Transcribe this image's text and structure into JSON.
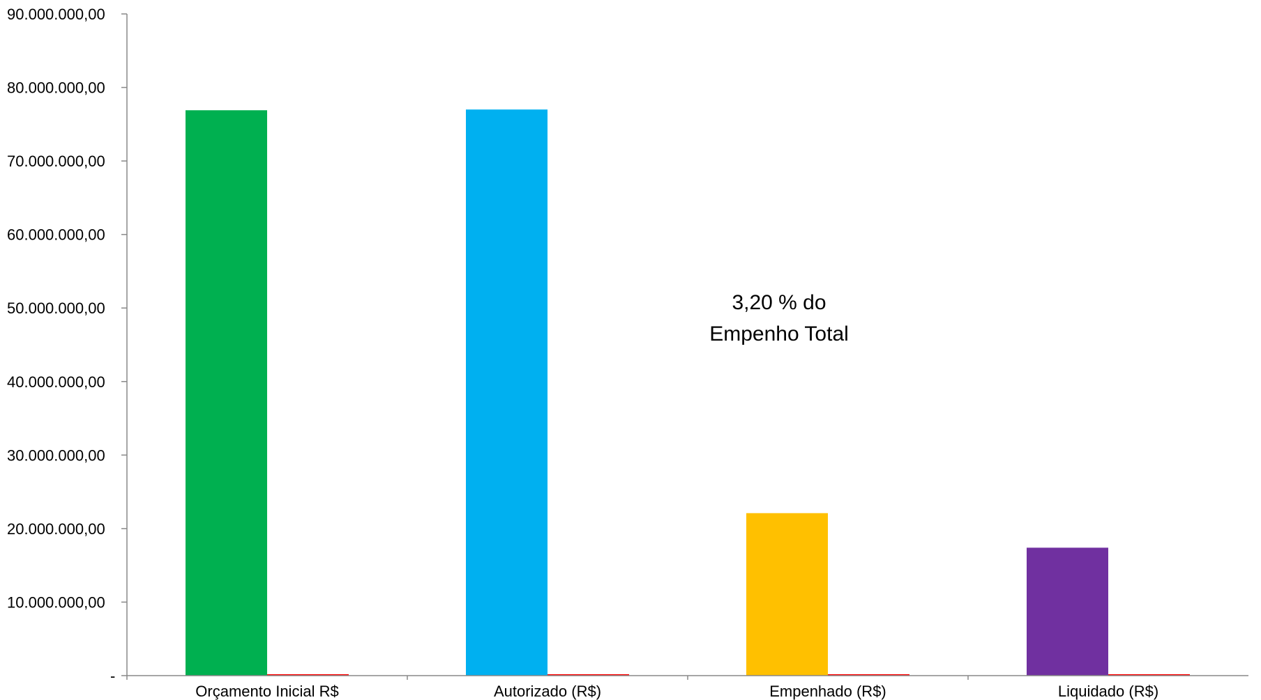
{
  "chart_data": {
    "type": "bar",
    "title": "",
    "xlabel": "",
    "ylabel": "",
    "ylim": [
      0,
      90000000
    ],
    "grid": false,
    "legend": "none",
    "y_ticks": [
      {
        "value": 0,
        "label": "-"
      },
      {
        "value": 10000000,
        "label": "10.000.000,00"
      },
      {
        "value": 20000000,
        "label": "20.000.000,00"
      },
      {
        "value": 30000000,
        "label": "30.000.000,00"
      },
      {
        "value": 40000000,
        "label": "40.000.000,00"
      },
      {
        "value": 50000000,
        "label": "50.000.000,00"
      },
      {
        "value": 60000000,
        "label": "60.000.000,00"
      },
      {
        "value": 70000000,
        "label": "70.000.000,00"
      },
      {
        "value": 80000000,
        "label": "80.000.000,00"
      },
      {
        "value": 90000000,
        "label": "90.000.000,00"
      }
    ],
    "categories": [
      "Orçamento Inicial R$",
      "Autorizado (R$)",
      "Empenhado (R$)",
      "Liquidado (R$)"
    ],
    "series": [
      {
        "values": [
          76900000,
          77000000,
          22100000,
          17400000
        ],
        "colors": [
          "#00B050",
          "#00B0F0",
          "#FFC000",
          "#7030A0"
        ]
      },
      {
        "values": [
          0,
          0,
          0,
          0
        ],
        "color": "#FF0000"
      }
    ],
    "annotation": {
      "lines": [
        "3,20 % do",
        "Empenho Total"
      ]
    }
  }
}
